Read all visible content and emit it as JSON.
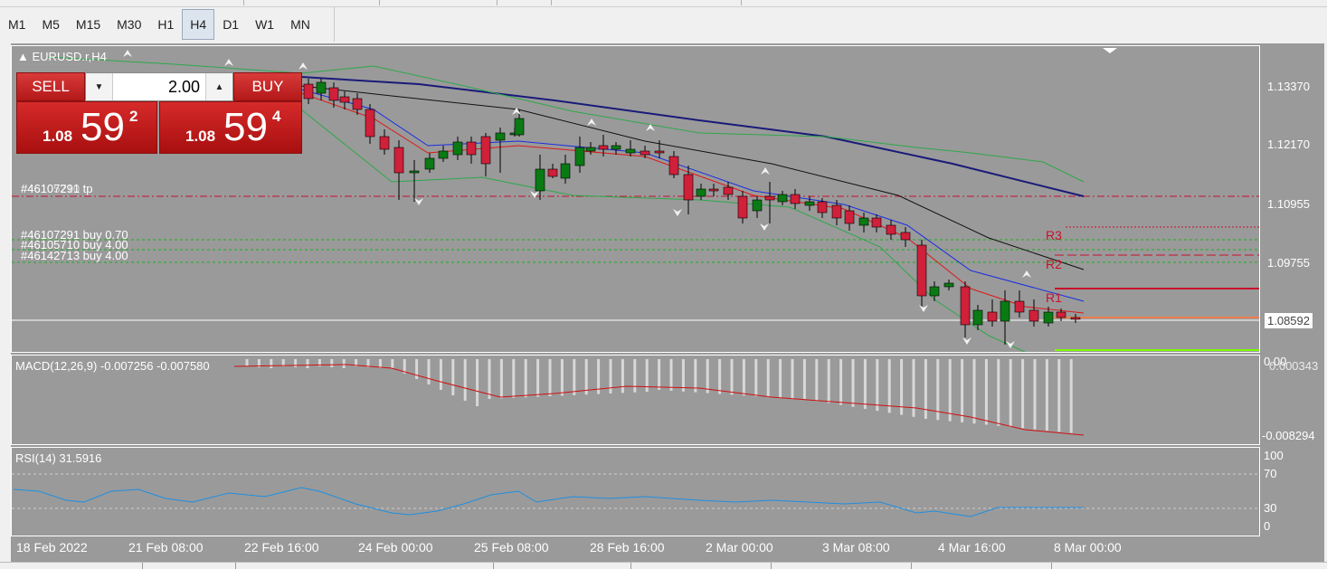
{
  "timeframes": [
    {
      "label": "M1",
      "active": false
    },
    {
      "label": "M5",
      "active": false
    },
    {
      "label": "M15",
      "active": false
    },
    {
      "label": "M30",
      "active": false
    },
    {
      "label": "H1",
      "active": false
    },
    {
      "label": "H4",
      "active": true
    },
    {
      "label": "D1",
      "active": false
    },
    {
      "label": "W1",
      "active": false
    },
    {
      "label": "MN",
      "active": false
    }
  ],
  "chart": {
    "symbol_title": "EURUSD.r,H4",
    "price_ticks": [
      "1.13370",
      "1.12170",
      "1.10955",
      "1.09755"
    ],
    "current_price": "1.08592",
    "time_ticks": [
      "18 Feb 2022",
      "21 Feb 08:00",
      "22 Feb 16:00",
      "24 Feb 00:00",
      "25 Feb 08:00",
      "28 Feb 16:00",
      "2 Mar 00:00",
      "3 Mar 08:00",
      "4 Mar 16:00",
      "8 Mar 00:00"
    ]
  },
  "trade_panel": {
    "sell_label": "SELL",
    "buy_label": "BUY",
    "volume": "2.00",
    "sell_price_prefix": "1.08",
    "sell_price_main": "59",
    "sell_price_sup": "2",
    "buy_price_prefix": "1.08",
    "buy_price_main": "59",
    "buy_price_sup": "4"
  },
  "orders": {
    "tp_label": "#46107291 tp",
    "tp_overlay": "#46105710",
    "line1": "#46107291 buy 0.70",
    "line2": "#46105710 buy 4.00",
    "line3": "#46142713 buy 4.00"
  },
  "pivots": [
    "R3",
    "R2",
    "R1"
  ],
  "macd": {
    "title": "MACD(12,26,9) -0.007256 -0.007580",
    "ticks": [
      "0.00",
      "0.000343",
      "-0.008294"
    ]
  },
  "rsi": {
    "title": "RSI(14) 31.5916",
    "ticks": [
      "100",
      "70",
      "30",
      "0"
    ]
  },
  "colors": {
    "chart_bg": "#9a9a9a",
    "bull": "#0a7a14",
    "bear": "#d0203a",
    "ma_slow": "#1a1a7a",
    "ma_fast_red": "#e01818",
    "ma_blue": "#1a2ee0",
    "ma_black": "#111111",
    "bollinger": "#2ea84a",
    "rsi_line": "#1e8fe0",
    "macd_signal": "#d01010"
  }
}
